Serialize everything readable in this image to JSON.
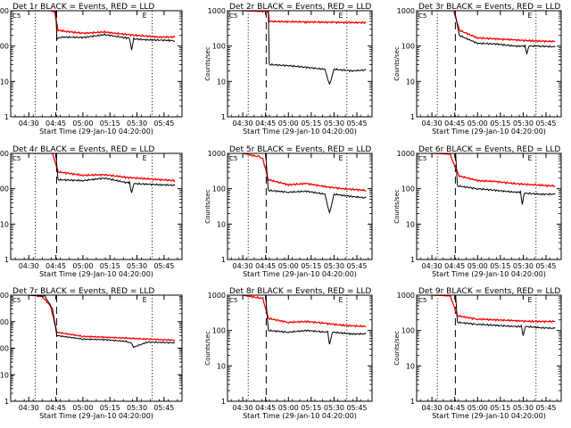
{
  "colors": {
    "events": "#000000",
    "lld": "#ff0000",
    "axis": "#000000"
  },
  "chart_data": [
    {
      "type": "line",
      "title": "Det 1r BLACK = Events, RED = LLD",
      "corner_label": "C5",
      "marker_label": "E",
      "ylabel": "Counts/sec",
      "xlabel": "Start Time (29-Jan-10 04:20:00)",
      "yscale": "log",
      "ylim": [
        1,
        1000
      ],
      "y_ticks": [
        "1",
        "10",
        "100",
        "1000"
      ],
      "x_ticks": [
        "04:30",
        "04:45",
        "05:00",
        "05:15",
        "05:30",
        "05:45"
      ],
      "series": [
        {
          "name": "Events",
          "points": [
            [
              4.5,
              1000
            ],
            [
              4.74,
              1000
            ],
            [
              4.75,
              1000
            ],
            [
              4.76,
              160
            ],
            [
              4.8,
              180
            ],
            [
              5.0,
              175
            ],
            [
              5.2,
              210
            ],
            [
              5.3,
              190
            ],
            [
              5.4,
              170
            ],
            [
              5.43,
              170
            ],
            [
              5.45,
              75
            ],
            [
              5.47,
              160
            ],
            [
              5.6,
              150
            ],
            [
              5.8,
              145
            ],
            [
              5.85,
              140
            ]
          ]
        },
        {
          "name": "LLD",
          "points": [
            [
              4.5,
              1000
            ],
            [
              4.7,
              1000
            ],
            [
              4.74,
              900
            ],
            [
              4.77,
              280
            ],
            [
              4.85,
              260
            ],
            [
              5.0,
              230
            ],
            [
              5.2,
              250
            ],
            [
              5.3,
              230
            ],
            [
              5.5,
              200
            ],
            [
              5.7,
              180
            ],
            [
              5.85,
              180
            ]
          ]
        }
      ]
    },
    {
      "type": "line",
      "title": "Det 2r BLACK = Events, RED = LLD",
      "corner_label": "C5",
      "marker_label": "E",
      "ylabel": "Counts/sec",
      "xlabel": "Start Time (29-Jan-10 04:20:00)",
      "yscale": "log",
      "ylim": [
        1,
        1000
      ],
      "y_ticks": [
        "1",
        "10",
        "100",
        "1000"
      ],
      "x_ticks": [
        "04:30",
        "04:45",
        "05:00",
        "05:15",
        "05:30",
        "05:45"
      ],
      "series": [
        {
          "name": "Events",
          "points": [
            [
              4.5,
              1000
            ],
            [
              4.78,
              1000
            ],
            [
              4.79,
              30
            ],
            [
              5.0,
              28
            ],
            [
              5.2,
              25
            ],
            [
              5.4,
              22
            ],
            [
              5.45,
              8
            ],
            [
              5.5,
              22
            ],
            [
              5.7,
              20
            ],
            [
              5.85,
              21
            ]
          ]
        },
        {
          "name": "LLD",
          "points": [
            [
              4.5,
              1000
            ],
            [
              4.7,
              950
            ],
            [
              4.78,
              950
            ],
            [
              4.79,
              500
            ],
            [
              5.2,
              480
            ],
            [
              5.5,
              470
            ],
            [
              5.85,
              460
            ]
          ]
        }
      ]
    },
    {
      "type": "line",
      "title": "Det 3r BLACK = Events, RED = LLD",
      "corner_label": "C5",
      "marker_label": "E",
      "ylabel": "Counts/sec",
      "xlabel": "Start Time (29-Jan-10 04:20:00)",
      "yscale": "log",
      "ylim": [
        1,
        1000
      ],
      "y_ticks": [
        "1",
        "10",
        "100",
        "1000"
      ],
      "x_ticks": [
        "04:30",
        "04:45",
        "05:00",
        "05:15",
        "05:30",
        "05:45"
      ],
      "series": [
        {
          "name": "Events",
          "points": [
            [
              4.5,
              1000
            ],
            [
              4.75,
              1000
            ],
            [
              4.8,
              200
            ],
            [
              5.0,
              120
            ],
            [
              5.2,
              115
            ],
            [
              5.4,
              100
            ],
            [
              5.52,
              100
            ],
            [
              5.54,
              60
            ],
            [
              5.56,
              100
            ],
            [
              5.7,
              100
            ],
            [
              5.85,
              95
            ]
          ]
        },
        {
          "name": "LLD",
          "points": [
            [
              4.5,
              1000
            ],
            [
              4.74,
              1000
            ],
            [
              4.8,
              280
            ],
            [
              5.0,
              170
            ],
            [
              5.2,
              160
            ],
            [
              5.4,
              150
            ],
            [
              5.6,
              140
            ],
            [
              5.85,
              135
            ]
          ]
        }
      ]
    },
    {
      "type": "line",
      "title": "Det 4r BLACK = Events, RED = LLD",
      "corner_label": "C5",
      "marker_label": "E",
      "ylabel": "Counts/sec",
      "xlabel": "Start Time (29-Jan-10 04:20:00)",
      "yscale": "log",
      "ylim": [
        1,
        1000
      ],
      "y_ticks": [
        "1",
        "10",
        "100",
        "1000"
      ],
      "x_ticks": [
        "04:30",
        "04:45",
        "05:00",
        "05:15",
        "05:30",
        "05:45"
      ],
      "series": [
        {
          "name": "Events",
          "points": [
            [
              4.5,
              1000
            ],
            [
              4.75,
              1000
            ],
            [
              4.77,
              180
            ],
            [
              5.0,
              170
            ],
            [
              5.2,
              200
            ],
            [
              5.4,
              150
            ],
            [
              5.43,
              150
            ],
            [
              5.45,
              75
            ],
            [
              5.47,
              140
            ],
            [
              5.7,
              130
            ],
            [
              5.85,
              125
            ]
          ]
        },
        {
          "name": "LLD",
          "points": [
            [
              4.5,
              1000
            ],
            [
              4.72,
              1000
            ],
            [
              4.77,
              300
            ],
            [
              5.0,
              240
            ],
            [
              5.2,
              250
            ],
            [
              5.4,
              210
            ],
            [
              5.6,
              190
            ],
            [
              5.85,
              170
            ]
          ]
        }
      ]
    },
    {
      "type": "line",
      "title": "Det 5r BLACK = Events, RED = LLD",
      "corner_label": "C5",
      "marker_label": "E",
      "ylabel": "Counts/sec",
      "xlabel": "Start Time (29-Jan-10 04:20:00)",
      "yscale": "log",
      "ylim": [
        1,
        1000
      ],
      "y_ticks": [
        "1",
        "10",
        "100",
        "1000"
      ],
      "x_ticks": [
        "04:30",
        "04:45",
        "05:00",
        "05:15",
        "05:30",
        "05:45"
      ],
      "series": [
        {
          "name": "Events",
          "points": [
            [
              4.5,
              1000
            ],
            [
              4.75,
              1000
            ],
            [
              4.78,
              90
            ],
            [
              5.0,
              80
            ],
            [
              5.2,
              85
            ],
            [
              5.4,
              70
            ],
            [
              5.45,
              20
            ],
            [
              5.5,
              70
            ],
            [
              5.7,
              60
            ],
            [
              5.85,
              55
            ]
          ]
        },
        {
          "name": "LLD",
          "points": [
            [
              4.5,
              1000
            ],
            [
              4.68,
              800
            ],
            [
              4.72,
              700
            ],
            [
              4.78,
              180
            ],
            [
              5.0,
              130
            ],
            [
              5.2,
              140
            ],
            [
              5.4,
              115
            ],
            [
              5.6,
              100
            ],
            [
              5.85,
              90
            ]
          ]
        }
      ]
    },
    {
      "type": "line",
      "title": "Det 6r BLACK = Events, RED = LLD",
      "corner_label": "C5",
      "marker_label": "E",
      "ylabel": "Counts/sec",
      "xlabel": "Start Time (29-Jan-10 04:20:00)",
      "yscale": "log",
      "ylim": [
        1,
        1000
      ],
      "y_ticks": [
        "1",
        "10",
        "100",
        "1000"
      ],
      "x_ticks": [
        "04:30",
        "04:45",
        "05:00",
        "05:15",
        "05:30",
        "05:45"
      ],
      "series": [
        {
          "name": "Events",
          "points": [
            [
              4.5,
              1000
            ],
            [
              4.76,
              1000
            ],
            [
              4.78,
              120
            ],
            [
              5.0,
              100
            ],
            [
              5.2,
              90
            ],
            [
              5.4,
              80
            ],
            [
              5.47,
              80
            ],
            [
              5.49,
              35
            ],
            [
              5.51,
              75
            ],
            [
              5.7,
              70
            ],
            [
              5.85,
              70
            ]
          ]
        },
        {
          "name": "LLD",
          "points": [
            [
              4.5,
              1000
            ],
            [
              4.7,
              950
            ],
            [
              4.74,
              500
            ],
            [
              4.8,
              230
            ],
            [
              5.0,
              170
            ],
            [
              5.2,
              160
            ],
            [
              5.4,
              140
            ],
            [
              5.6,
              130
            ],
            [
              5.85,
              120
            ]
          ]
        }
      ]
    },
    {
      "type": "line",
      "title": "Det 7r BLACK = Events, RED = LLD",
      "corner_label": "C5",
      "marker_label": "E",
      "ylabel": "Counts/sec",
      "xlabel": "Start Time (29-Jan-10 04:20:00)",
      "yscale": "log",
      "ylim": [
        1,
        10000
      ],
      "y_ticks": [
        "1",
        "10",
        "100",
        "1000",
        "10000"
      ],
      "x_ticks": [
        "04:30",
        "04:45",
        "05:00",
        "05:15",
        "05:30",
        "05:45"
      ],
      "series": [
        {
          "name": "Events",
          "points": [
            [
              4.5,
              10000
            ],
            [
              4.65,
              9000
            ],
            [
              4.72,
              3000
            ],
            [
              4.76,
              300
            ],
            [
              5.0,
              220
            ],
            [
              5.2,
              210
            ],
            [
              5.4,
              180
            ],
            [
              5.45,
              150
            ],
            [
              5.47,
              110
            ],
            [
              5.6,
              170
            ],
            [
              5.85,
              160
            ]
          ]
        },
        {
          "name": "LLD",
          "points": [
            [
              4.5,
              10000
            ],
            [
              4.62,
              9000
            ],
            [
              4.7,
              4000
            ],
            [
              4.76,
              400
            ],
            [
              5.0,
              280
            ],
            [
              5.2,
              260
            ],
            [
              5.4,
              240
            ],
            [
              5.6,
              220
            ],
            [
              5.85,
              200
            ]
          ]
        }
      ]
    },
    {
      "type": "line",
      "title": "Det 8r BLACK = Events, RED = LLD",
      "corner_label": "C5",
      "marker_label": "E",
      "ylabel": "Counts/sec",
      "xlabel": "Start Time (29-Jan-10 04:20:00)",
      "yscale": "log",
      "ylim": [
        1,
        1000
      ],
      "y_ticks": [
        "1",
        "10",
        "100",
        "1000"
      ],
      "x_ticks": [
        "04:30",
        "04:45",
        "05:00",
        "05:15",
        "05:30",
        "05:45"
      ],
      "series": [
        {
          "name": "Events",
          "points": [
            [
              4.5,
              1000
            ],
            [
              4.75,
              1000
            ],
            [
              4.78,
              100
            ],
            [
              5.0,
              90
            ],
            [
              5.2,
              100
            ],
            [
              5.4,
              90
            ],
            [
              5.43,
              90
            ],
            [
              5.45,
              40
            ],
            [
              5.48,
              90
            ],
            [
              5.7,
              80
            ],
            [
              5.85,
              80
            ]
          ]
        },
        {
          "name": "LLD",
          "points": [
            [
              4.5,
              1000
            ],
            [
              4.72,
              800
            ],
            [
              4.78,
              220
            ],
            [
              5.0,
              170
            ],
            [
              5.2,
              180
            ],
            [
              5.4,
              160
            ],
            [
              5.6,
              140
            ],
            [
              5.85,
              130
            ]
          ]
        }
      ]
    },
    {
      "type": "line",
      "title": "Det 9r BLACK = Events, RED = LLD",
      "corner_label": "C5",
      "marker_label": "E",
      "ylabel": "Counts/sec",
      "xlabel": "Start Time (29-Jan-10 04:20:00)",
      "yscale": "log",
      "ylim": [
        1,
        1000
      ],
      "y_ticks": [
        "1",
        "10",
        "100",
        "1000"
      ],
      "x_ticks": [
        "04:30",
        "04:45",
        "05:00",
        "05:15",
        "05:30",
        "05:45"
      ],
      "series": [
        {
          "name": "Events",
          "points": [
            [
              4.5,
              1000
            ],
            [
              4.76,
              1000
            ],
            [
              4.78,
              170
            ],
            [
              5.0,
              150
            ],
            [
              5.2,
              140
            ],
            [
              5.4,
              130
            ],
            [
              5.48,
              130
            ],
            [
              5.5,
              70
            ],
            [
              5.52,
              130
            ],
            [
              5.7,
              120
            ],
            [
              5.85,
              115
            ]
          ]
        },
        {
          "name": "LLD",
          "points": [
            [
              4.5,
              1000
            ],
            [
              4.7,
              950
            ],
            [
              4.78,
              260
            ],
            [
              5.0,
              210
            ],
            [
              5.2,
              200
            ],
            [
              5.4,
              190
            ],
            [
              5.6,
              180
            ],
            [
              5.85,
              180
            ]
          ]
        }
      ]
    }
  ]
}
